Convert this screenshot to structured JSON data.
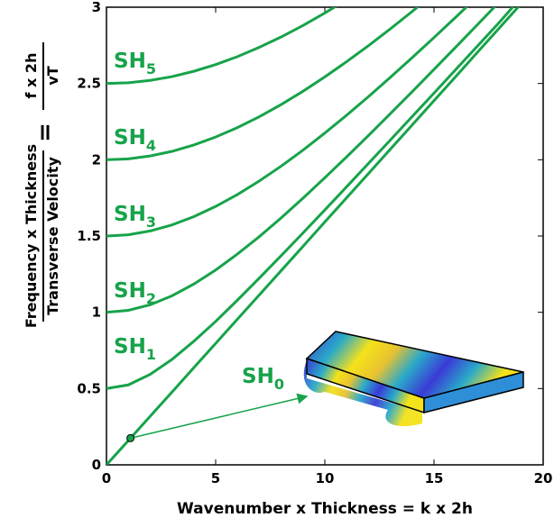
{
  "chart_data": {
    "type": "line",
    "xlabel": "Wavenumber x Thickness = k x 2h",
    "ylabel": {
      "fraction1": [
        "Frequency x Thickness",
        "Transverse Velocity"
      ],
      "equals": "=",
      "fraction2": [
        "f x 2h",
        "vT"
      ]
    },
    "x": [
      0,
      1,
      2,
      3,
      4,
      5,
      6,
      7,
      8,
      9,
      10,
      11,
      12,
      13,
      14,
      15,
      16,
      17,
      18,
      19,
      20
    ],
    "xlim": [
      0,
      20
    ],
    "ylim": [
      0,
      3
    ],
    "xticks": [
      0,
      5,
      10,
      15,
      20
    ],
    "yticks": [
      0,
      0.5,
      1,
      1.5,
      2,
      2.5,
      3
    ],
    "series": [
      {
        "name": "SH",
        "sub": "0",
        "color": "#17a34a",
        "values": [
          0,
          0.159,
          0.318,
          0.477,
          0.637,
          0.796,
          0.955,
          1.114,
          1.273,
          1.432,
          1.592,
          1.751,
          1.91,
          2.069,
          2.228,
          2.387,
          2.546,
          2.706,
          2.865,
          3.024,
          null
        ]
      },
      {
        "name": "SH",
        "sub": "1",
        "color": "#17a34a",
        "values": [
          0.5,
          0.524,
          0.593,
          0.691,
          0.81,
          0.94,
          1.08,
          1.224,
          1.371,
          1.52,
          1.671,
          1.823,
          1.976,
          2.129,
          2.283,
          2.437,
          2.592,
          2.747,
          2.902,
          3.065,
          null
        ]
      },
      {
        "name": "SH",
        "sub": "2",
        "color": "#17a34a",
        "values": [
          1,
          1.013,
          1.049,
          1.108,
          1.185,
          1.277,
          1.382,
          1.496,
          1.619,
          1.748,
          1.882,
          2.019,
          2.159,
          2.302,
          2.446,
          2.592,
          2.739,
          2.887,
          3.036,
          null,
          null
        ]
      },
      {
        "name": "SH",
        "sub": "3",
        "color": "#17a34a",
        "values": [
          1.5,
          1.508,
          1.533,
          1.573,
          1.627,
          1.694,
          1.772,
          1.861,
          1.958,
          2.063,
          2.175,
          2.292,
          2.414,
          2.54,
          2.669,
          2.801,
          2.935,
          3.071,
          null,
          null,
          null
        ]
      },
      {
        "name": "SH",
        "sub": "4",
        "color": "#17a34a",
        "values": [
          2,
          2.006,
          2.025,
          2.055,
          2.097,
          2.149,
          2.211,
          2.282,
          2.362,
          2.449,
          2.543,
          2.643,
          2.748,
          2.858,
          2.972,
          3.089,
          null,
          null,
          null,
          null,
          null
        ]
      },
      {
        "name": "SH",
        "sub": "5",
        "color": "#17a34a",
        "values": [
          2.5,
          2.505,
          2.52,
          2.545,
          2.58,
          2.624,
          2.676,
          2.737,
          2.805,
          2.88,
          2.962,
          3.049,
          null,
          null,
          null,
          null,
          null,
          null,
          null,
          null,
          null
        ]
      }
    ],
    "marker": {
      "x": 1.1,
      "y": 0.175
    }
  }
}
